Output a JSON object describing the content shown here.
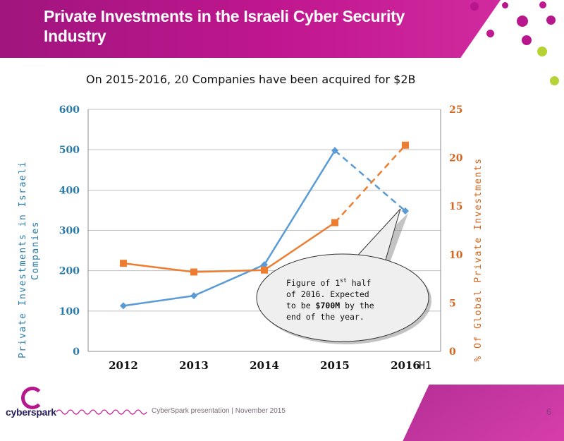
{
  "slide": {
    "title": "Private Investments in the Israeli  Cyber Security Industry",
    "subtitle_prefix": "On 2015-2016, ",
    "subtitle_number": "20",
    "subtitle_suffix": " Companies have been acquired for $2B",
    "footer": "CyberSpark presentation   |  November 2015",
    "page_number": "6",
    "logo_text": "cyberspark",
    "colors": {
      "header": "#b8168c",
      "lime": "#b5d334",
      "left_series": "#5b9bd5",
      "right_series": "#ed7d31"
    }
  },
  "chart_data": {
    "type": "line",
    "categories": [
      "2012",
      "2013",
      "2014",
      "2015",
      "2016"
    ],
    "category_suffix_last": "H1",
    "left_axis": {
      "label": "Private Investments in Israeli Companies",
      "min": 0,
      "max": 600,
      "ticks": [
        "0",
        "100",
        "200",
        "300",
        "400",
        "500",
        "600"
      ]
    },
    "right_axis": {
      "label": "% Of Global Private Investments",
      "min": 0,
      "max": 25,
      "ticks": [
        "0",
        "5",
        "10",
        "15",
        "20",
        "25"
      ]
    },
    "series": [
      {
        "axis": "left",
        "color": "#5b9bd5",
        "marker": "diamond",
        "values": [
          113,
          138,
          215,
          498,
          348
        ],
        "dashed_from_index": 3
      },
      {
        "axis": "right",
        "color": "#ed7d31",
        "marker": "square",
        "values": [
          9.1,
          8.2,
          8.4,
          13.3,
          21.3
        ],
        "dashed_from_index": 3
      }
    ],
    "callout": {
      "line1_a": "Figure of 1",
      "line1_sup": "st",
      "line1_b": " half",
      "line2": "of 2016. Expected",
      "line3_a": "to be ",
      "line3_bold": "$700M",
      "line3_b": " by the",
      "line4": "end of the year."
    },
    "grid": true
  }
}
